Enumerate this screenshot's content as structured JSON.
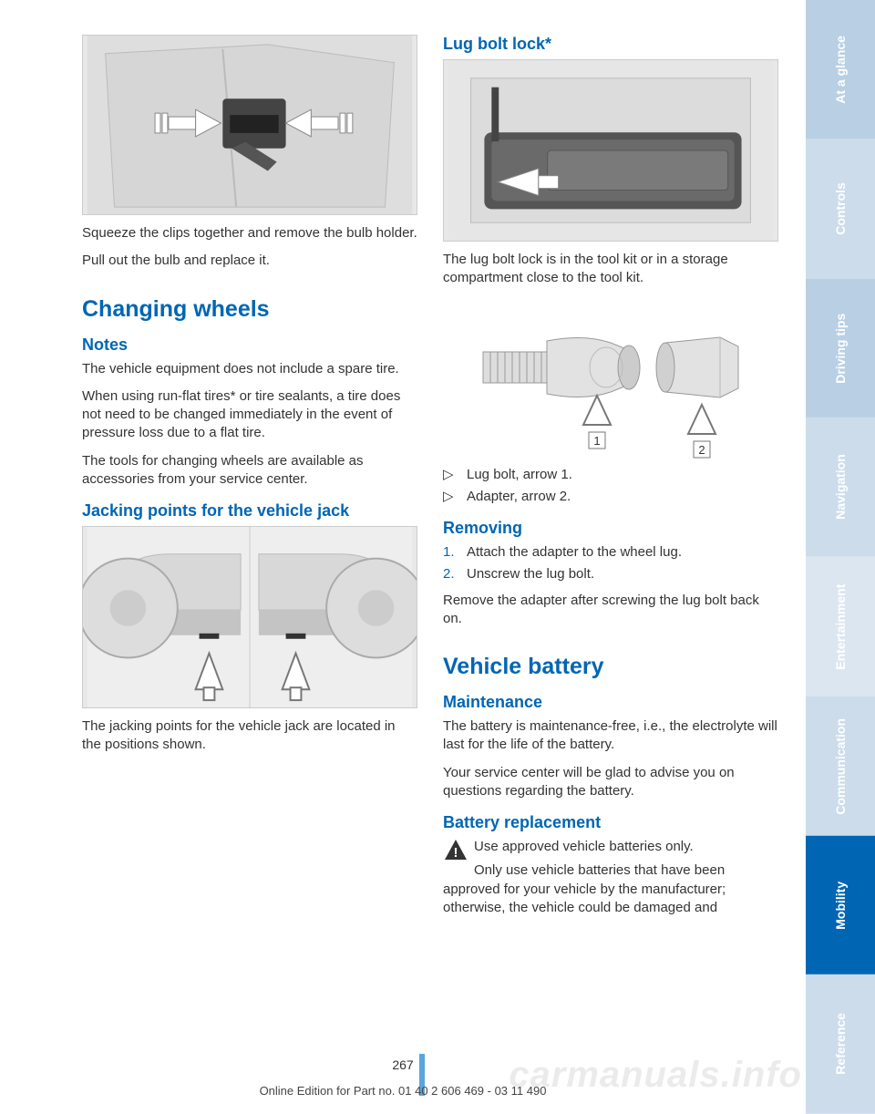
{
  "left": {
    "p1": "Squeeze the clips together and remove the bulb holder.",
    "p2": "Pull out the bulb and replace it.",
    "h1": "Changing wheels",
    "h2_notes": "Notes",
    "p3": "The vehicle equipment does not include a spare tire.",
    "p4": "When using run-flat tires* or tire sealants, a tire does not need to be changed immediately in the event of pressure loss due to a flat tire.",
    "p5": "The tools for changing wheels are available as accessories from your service center.",
    "h2_jack": "Jacking points for the vehicle jack",
    "p6": "The jacking points for the vehicle jack are lo­cated in the positions shown."
  },
  "right": {
    "h2_lug": "Lug bolt lock*",
    "p1": "The lug bolt lock is in the tool kit or in a storage compartment close to the tool kit.",
    "bullet1": "Lug bolt, arrow 1.",
    "bullet2": "Adapter, arrow 2.",
    "h2_removing": "Removing",
    "step1": "Attach the adapter to the wheel lug.",
    "step2": "Unscrew the lug bolt.",
    "p2": "Remove the adapter after screwing the lug bolt back on.",
    "h1_battery": "Vehicle battery",
    "h2_maint": "Maintenance",
    "p3": "The battery is maintenance-free, i.e., the elec­trolyte will last for the life of the battery.",
    "p4": "Your service center will be glad to advise you on questions regarding the battery.",
    "h2_replace": "Battery replacement",
    "warn1": "Use approved vehicle batteries only.",
    "warn2": "Only use vehicle batteries that have been approved for your vehicle by the manufacturer; otherwise, the vehicle could be damaged and"
  },
  "page_number": "267",
  "footer": "Online Edition for Part no. 01 40 2 606 469 - 03 11 490",
  "watermark": "carmanuals.info",
  "tabs": [
    {
      "label": "At a glance",
      "class": "inactive"
    },
    {
      "label": "Controls",
      "class": "inactive2"
    },
    {
      "label": "Driving tips",
      "class": "inactive"
    },
    {
      "label": "Navigation",
      "class": "inactive2"
    },
    {
      "label": "Entertainment",
      "class": "inactive3"
    },
    {
      "label": "Communication",
      "class": "inactive2"
    },
    {
      "label": "Mobility",
      "class": "active"
    },
    {
      "label": "Reference",
      "class": "inactive2"
    }
  ],
  "colors": {
    "brand_blue": "#0066b3",
    "tab_inactive": "#b9cfe4",
    "fig_bg": "#e8e8e8"
  }
}
